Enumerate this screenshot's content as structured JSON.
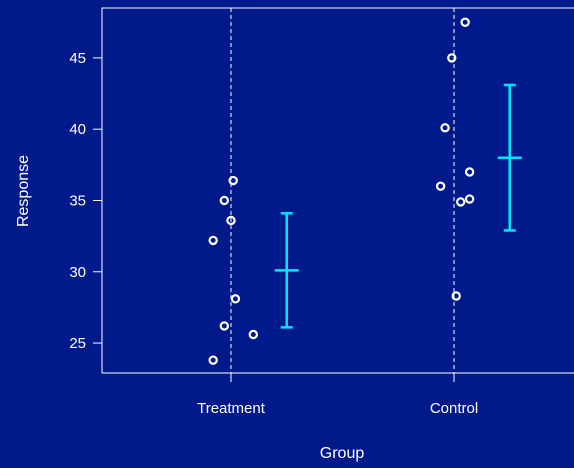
{
  "chart_data": {
    "type": "scatter",
    "xlabel": "Group",
    "ylabel": "Response",
    "categories": [
      "Treatment",
      "Control"
    ],
    "ylim": [
      22.9,
      48.5
    ],
    "yticks": [
      25,
      30,
      35,
      40,
      45
    ],
    "grid": "dashed vertical line at each group",
    "series": [
      {
        "category": "Treatment",
        "points": [
          {
            "offset": 0.01,
            "y": 36.4
          },
          {
            "offset": -0.03,
            "y": 35.0
          },
          {
            "offset": 0.0,
            "y": 33.6
          },
          {
            "offset": -0.08,
            "y": 32.2
          },
          {
            "offset": 0.02,
            "y": 28.1
          },
          {
            "offset": -0.03,
            "y": 26.2
          },
          {
            "offset": 0.1,
            "y": 25.6
          },
          {
            "offset": -0.08,
            "y": 23.8
          }
        ],
        "summary": {
          "mean": 30.1,
          "lower": 26.1,
          "upper": 34.1
        }
      },
      {
        "category": "Control",
        "points": [
          {
            "offset": 0.05,
            "y": 47.5
          },
          {
            "offset": -0.01,
            "y": 45.0
          },
          {
            "offset": -0.04,
            "y": 40.1
          },
          {
            "offset": 0.07,
            "y": 37.0
          },
          {
            "offset": -0.06,
            "y": 36.0
          },
          {
            "offset": 0.07,
            "y": 35.1
          },
          {
            "offset": 0.03,
            "y": 34.9
          },
          {
            "offset": 0.01,
            "y": 28.3
          }
        ],
        "summary": {
          "mean": 38.0,
          "lower": 32.9,
          "upper": 43.1
        }
      }
    ]
  },
  "colors": {
    "background": "#001a8c",
    "foreground": "#ffffff",
    "interval": "#00e5ff"
  }
}
